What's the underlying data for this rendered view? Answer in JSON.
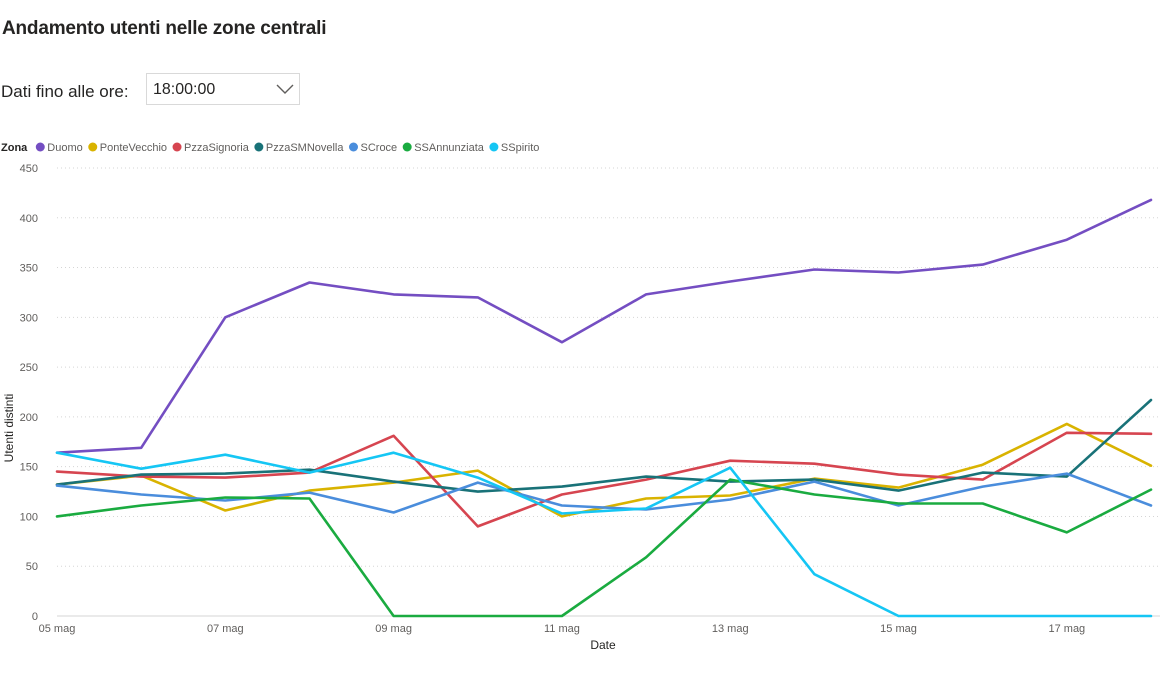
{
  "page": {
    "title": "Andamento utenti nelle zone centrali",
    "filter_label": "Dati fino alle ore:",
    "filter_value": "18:00:00"
  },
  "chart_data": {
    "type": "line",
    "title": "",
    "xlabel": "Date",
    "ylabel": "Utenti distinti",
    "legend_title": "Zona",
    "legend_position": "top-left",
    "grid": true,
    "ylim": [
      0,
      450
    ],
    "yticks": [
      0,
      50,
      100,
      150,
      200,
      250,
      300,
      350,
      400,
      450
    ],
    "x": [
      "05 mag",
      "06 mag",
      "07 mag",
      "08 mag",
      "09 mag",
      "10 mag",
      "11 mag",
      "12 mag",
      "13 mag",
      "14 mag",
      "15 mag",
      "16 mag",
      "17 mag",
      "18 mag"
    ],
    "xticks": [
      "05 mag",
      "07 mag",
      "09 mag",
      "11 mag",
      "13 mag",
      "15 mag",
      "17 mag"
    ],
    "series": [
      {
        "name": "Duomo",
        "color": "#744EC2",
        "values": [
          164,
          169,
          300,
          335,
          323,
          320,
          275,
          323,
          336,
          348,
          345,
          353,
          378,
          418
        ]
      },
      {
        "name": "PonteVecchio",
        "color": "#D9B300",
        "values": [
          132,
          141,
          106,
          126,
          134,
          146,
          100,
          118,
          121,
          138,
          129,
          152,
          193,
          151
        ]
      },
      {
        "name": "PzzaSignoria",
        "color": "#D64550",
        "values": [
          145,
          140,
          139,
          144,
          181,
          90,
          122,
          137,
          156,
          153,
          142,
          137,
          184,
          183
        ]
      },
      {
        "name": "PzzaSMNovella",
        "color": "#197278",
        "values": [
          132,
          142,
          143,
          147,
          135,
          125,
          130,
          140,
          135,
          137,
          126,
          144,
          140,
          217
        ]
      },
      {
        "name": "SCroce",
        "color": "#4A8DDC",
        "values": [
          131,
          122,
          116,
          124,
          104,
          134,
          111,
          107,
          117,
          135,
          111,
          130,
          143,
          111
        ]
      },
      {
        "name": "SSAnnunziata",
        "color": "#1AAB40",
        "values": [
          100,
          111,
          119,
          118,
          0,
          0,
          0,
          59,
          137,
          122,
          113,
          113,
          84,
          127
        ]
      },
      {
        "name": "SSpirito",
        "color": "#15C6F4",
        "values": [
          164,
          148,
          162,
          144,
          164,
          139,
          103,
          108,
          149,
          42,
          0,
          0,
          0,
          0
        ]
      }
    ]
  }
}
